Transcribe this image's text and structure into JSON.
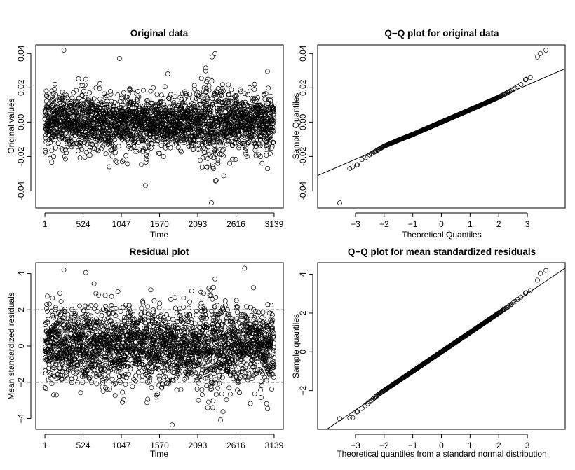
{
  "background": "#ffffff",
  "chart_data": [
    {
      "id": "original",
      "type": "scatter",
      "title": "Original data",
      "xlabel": "Time",
      "ylabel": "Original values",
      "xlim": [
        1,
        3139
      ],
      "ylim": [
        -0.05,
        0.045
      ],
      "xticks": [
        1,
        524,
        1047,
        1570,
        2093,
        2616,
        3139
      ],
      "xtick_labels": [
        "1",
        "524",
        "1047",
        "1570",
        "2093",
        "2616",
        "3139"
      ],
      "yticks": [
        -0.04,
        -0.02,
        0.0,
        0.02,
        0.04
      ],
      "ytick_labels": [
        "-0.04",
        "-0.02",
        "0.00",
        "0.02",
        "0.04"
      ],
      "marker": "open-circle",
      "grid": false,
      "n_points": 3139,
      "approx_sd": 0.0078,
      "notable_points": [
        {
          "x": 260,
          "y": 0.042
        },
        {
          "x": 2330,
          "y": 0.04
        },
        {
          "x": 2290,
          "y": 0.038
        },
        {
          "x": 2280,
          "y": -0.047
        },
        {
          "x": 560,
          "y": 0.025
        },
        {
          "x": 2230,
          "y": 0.025
        },
        {
          "x": 1080,
          "y": -0.022
        },
        {
          "x": 1060,
          "y": -0.023
        },
        {
          "x": 2220,
          "y": -0.026
        },
        {
          "x": 3050,
          "y": -0.027
        },
        {
          "x": 2300,
          "y": -0.026
        },
        {
          "x": 120,
          "y": -0.02
        },
        {
          "x": 1450,
          "y": 0.018
        },
        {
          "x": 2950,
          "y": -0.02
        },
        {
          "x": 700,
          "y": 0.02
        }
      ]
    },
    {
      "id": "qq_original",
      "type": "scatter",
      "title": "Q−Q plot for original data",
      "xlabel": "Theoretical Quantiles",
      "ylabel": "Sample Quantiles",
      "xlim": [
        -4.0,
        4.0
      ],
      "ylim": [
        -0.05,
        0.045
      ],
      "xticks": [
        -3,
        -2,
        -1,
        0,
        1,
        2,
        3
      ],
      "xtick_labels": [
        "−3",
        "−2",
        "−1",
        "0",
        "1",
        "2",
        "3"
      ],
      "yticks": [
        -0.04,
        -0.02,
        0.0,
        0.02,
        0.04
      ],
      "ytick_labels": [
        "-0.04",
        "-0.02",
        "0.00",
        "0.02",
        "0.04"
      ],
      "marker": "open-circle",
      "reference_line": {
        "intercept": 0.0,
        "slope": 0.0072
      },
      "points": [
        {
          "x": -3.55,
          "y": -0.047
        },
        {
          "x": -3.2,
          "y": -0.027
        },
        {
          "x": -3.1,
          "y": -0.026
        },
        {
          "x": -2.95,
          "y": -0.025
        },
        {
          "x": -2.8,
          "y": -0.022
        },
        {
          "x": -2.6,
          "y": -0.02
        },
        {
          "x": -2.4,
          "y": -0.018
        },
        {
          "x": -2.2,
          "y": -0.016
        },
        {
          "x": -2.0,
          "y": -0.014
        },
        {
          "x": -1.5,
          "y": -0.0105
        },
        {
          "x": -1.0,
          "y": -0.0072
        },
        {
          "x": -0.5,
          "y": -0.0036
        },
        {
          "x": 0.0,
          "y": 0.0
        },
        {
          "x": 0.5,
          "y": 0.0036
        },
        {
          "x": 1.0,
          "y": 0.0072
        },
        {
          "x": 1.5,
          "y": 0.0108
        },
        {
          "x": 2.0,
          "y": 0.0145
        },
        {
          "x": 2.4,
          "y": 0.018
        },
        {
          "x": 2.7,
          "y": 0.021
        },
        {
          "x": 2.85,
          "y": 0.023
        },
        {
          "x": 2.95,
          "y": 0.025
        },
        {
          "x": 3.1,
          "y": 0.026
        },
        {
          "x": 3.35,
          "y": 0.038
        },
        {
          "x": 3.45,
          "y": 0.04
        },
        {
          "x": 3.65,
          "y": 0.042
        }
      ]
    },
    {
      "id": "residual",
      "type": "scatter",
      "title": "Residual plot",
      "xlabel": "Time",
      "ylabel": "Mean standardized residuals",
      "xlim": [
        1,
        3139
      ],
      "ylim": [
        -4.6,
        4.6
      ],
      "xticks": [
        1,
        524,
        1047,
        1570,
        2093,
        2616,
        3139
      ],
      "xtick_labels": [
        "1",
        "524",
        "1047",
        "1570",
        "2093",
        "2616",
        "3139"
      ],
      "yticks": [
        -4,
        -2,
        0,
        2,
        4
      ],
      "ytick_labels": [
        "−4",
        "−2",
        "0",
        "2",
        "4"
      ],
      "marker": "open-circle",
      "hlines": [
        2,
        -2
      ],
      "hline_style": "dashed",
      "n_points": 3139,
      "approx_sd": 1.0,
      "notable_points": [
        {
          "x": 260,
          "y": 4.2
        },
        {
          "x": 560,
          "y": 4.05
        },
        {
          "x": 2330,
          "y": 3.7
        },
        {
          "x": 1060,
          "y": -3.1
        },
        {
          "x": 1080,
          "y": -2.95
        },
        {
          "x": 2230,
          "y": -3.4
        },
        {
          "x": 2300,
          "y": -3.4
        },
        {
          "x": 3050,
          "y": -3.45
        },
        {
          "x": 120,
          "y": -2.7
        },
        {
          "x": 1450,
          "y": 3.1
        },
        {
          "x": 700,
          "y": 2.9
        },
        {
          "x": 1000,
          "y": 3.0
        }
      ]
    },
    {
      "id": "qq_residual",
      "type": "scatter",
      "title": "Q−Q plot for mean standardized residuals",
      "xlabel": "Theoretical quantiles from a standard normal distribution",
      "ylabel": "Sample quantiles",
      "xlim": [
        -4.0,
        4.0
      ],
      "ylim": [
        -4.0,
        4.6
      ],
      "xticks": [
        -3,
        -2,
        -1,
        0,
        1,
        2,
        3
      ],
      "xtick_labels": [
        "−3",
        "−2",
        "−1",
        "0",
        "1",
        "2",
        "3"
      ],
      "yticks": [
        -2,
        0,
        2,
        4
      ],
      "ytick_labels": [
        "−2",
        "0",
        "2",
        "4"
      ],
      "marker": "open-circle",
      "reference_line": {
        "intercept": 0.0,
        "slope": 1.0
      },
      "points": [
        {
          "x": -3.55,
          "y": -3.45
        },
        {
          "x": -3.2,
          "y": -3.4
        },
        {
          "x": -3.1,
          "y": -3.4
        },
        {
          "x": -2.95,
          "y": -3.1
        },
        {
          "x": -2.8,
          "y": -2.95
        },
        {
          "x": -2.6,
          "y": -2.7
        },
        {
          "x": -2.4,
          "y": -2.45
        },
        {
          "x": -2.2,
          "y": -2.2
        },
        {
          "x": -2.0,
          "y": -2.0
        },
        {
          "x": -1.5,
          "y": -1.5
        },
        {
          "x": -1.0,
          "y": -1.0
        },
        {
          "x": -0.5,
          "y": -0.5
        },
        {
          "x": 0.0,
          "y": 0.0
        },
        {
          "x": 0.5,
          "y": 0.5
        },
        {
          "x": 1.0,
          "y": 1.0
        },
        {
          "x": 1.5,
          "y": 1.5
        },
        {
          "x": 2.0,
          "y": 2.0
        },
        {
          "x": 2.4,
          "y": 2.4
        },
        {
          "x": 2.7,
          "y": 2.75
        },
        {
          "x": 2.85,
          "y": 2.9
        },
        {
          "x": 2.95,
          "y": 3.05
        },
        {
          "x": 3.1,
          "y": 3.15
        },
        {
          "x": 3.35,
          "y": 3.7
        },
        {
          "x": 3.45,
          "y": 4.05
        },
        {
          "x": 3.65,
          "y": 4.2
        }
      ]
    }
  ]
}
